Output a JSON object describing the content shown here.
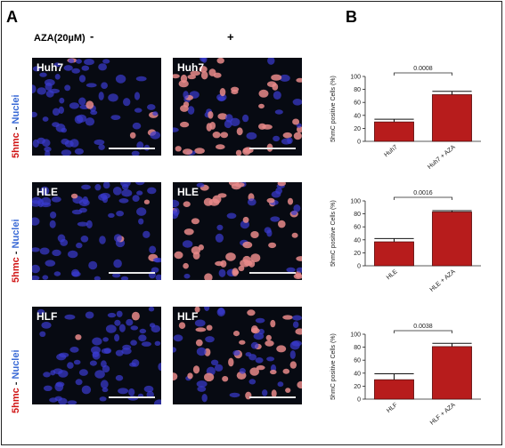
{
  "figure": {
    "panel_a": "A",
    "panel_b": "B",
    "treatment_label": "AZA(20µM)",
    "treatment_minus": "-",
    "treatment_plus": "+",
    "stain_label": {
      "mark": "5hmc",
      "sep": " - ",
      "nuclei": "Nuclei"
    },
    "micrographs": [
      {
        "name": "Huh7",
        "treated": false
      },
      {
        "name": "Huh7",
        "treated": true
      },
      {
        "name": "HLE",
        "treated": false
      },
      {
        "name": "HLE",
        "treated": true
      },
      {
        "name": "HLF",
        "treated": false
      },
      {
        "name": "HLF",
        "treated": true
      }
    ],
    "colors": {
      "bar": "#b71c1c",
      "nuclei": "#3b3ad0",
      "marker": "#e88a8a",
      "background": "#070a12"
    }
  },
  "chart_data": [
    {
      "type": "bar",
      "categories": [
        "Huh7",
        "Huh7 + AZA"
      ],
      "values": [
        30,
        72
      ],
      "errors": [
        4,
        5
      ],
      "ylabel": "5hmC positive Cells (%)",
      "ylim": [
        0,
        100
      ],
      "yticks": [
        0,
        20,
        40,
        60,
        80,
        100
      ],
      "significance": {
        "text": "0.0008",
        "between": [
          0,
          1
        ]
      }
    },
    {
      "type": "bar",
      "categories": [
        "HLE",
        "HLE + AZA"
      ],
      "values": [
        37,
        83
      ],
      "errors": [
        5,
        2
      ],
      "ylabel": "5hmC positive Cells (%)",
      "ylim": [
        0,
        100
      ],
      "yticks": [
        0,
        20,
        40,
        60,
        80,
        100
      ],
      "significance": {
        "text": "0.0016",
        "between": [
          0,
          1
        ]
      }
    },
    {
      "type": "bar",
      "categories": [
        "HLF",
        "HLF + AZA"
      ],
      "values": [
        30,
        81
      ],
      "errors": [
        9,
        5
      ],
      "ylabel": "5hmC positive Cells (%)",
      "ylim": [
        0,
        100
      ],
      "yticks": [
        0,
        20,
        40,
        60,
        80,
        100
      ],
      "significance": {
        "text": "0.0038",
        "between": [
          0,
          1
        ]
      }
    }
  ]
}
